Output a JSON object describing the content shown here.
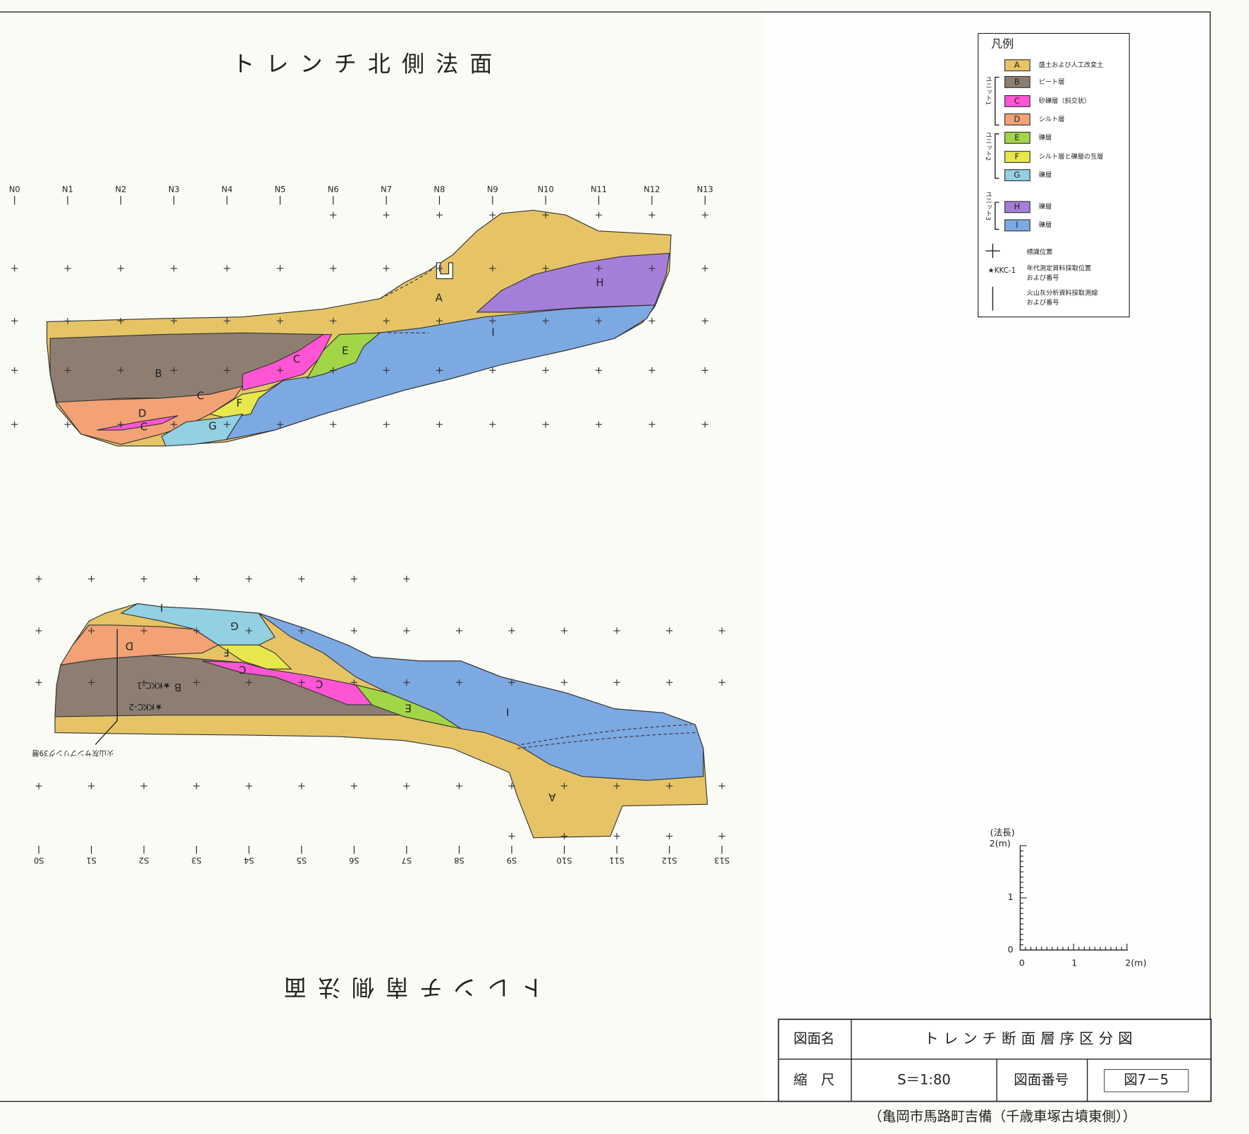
{
  "north_section": {
    "title": "トレンチ北側法面",
    "stations": [
      "N0",
      "N1",
      "N2",
      "N3",
      "N4",
      "N5",
      "N6",
      "N7",
      "N8",
      "N9",
      "N10",
      "N11",
      "N12",
      "N13"
    ],
    "layer_labels": [
      "A",
      "B",
      "C",
      "C",
      "C",
      "D",
      "E",
      "F",
      "G",
      "H",
      "I"
    ]
  },
  "south_section": {
    "title": "トレンチ南側法面",
    "stations": [
      "S0",
      "S1",
      "S2",
      "S3",
      "S4",
      "S5",
      "S6",
      "S7",
      "S8",
      "S9",
      "S10",
      "S11",
      "S12",
      "S13"
    ],
    "layer_labels": [
      "A",
      "B",
      "C",
      "C",
      "D",
      "E",
      "F",
      "G",
      "I",
      "I"
    ],
    "annotations": [
      "★KKC-1",
      "★KKC-2",
      "火山灰サンプリング39層"
    ]
  },
  "legend": {
    "title": "凡例",
    "items": [
      {
        "code": "A",
        "label": "盛土および人工改変土",
        "color": "#e6c466"
      },
      {
        "code": "B",
        "label": "ピート層",
        "color": "#8e7e72"
      },
      {
        "code": "C",
        "label": "砂礫層（斜交状）",
        "color": "#ff55d4"
      },
      {
        "code": "D",
        "label": "シルト層",
        "color": "#f2a274"
      },
      {
        "code": "E",
        "label": "礫層",
        "color": "#a2d647"
      },
      {
        "code": "F",
        "label": "シルト層と礫層の互層",
        "color": "#e8e84e"
      },
      {
        "code": "G",
        "label": "礫層",
        "color": "#92d0e2"
      },
      {
        "code": "H",
        "label": "礫層",
        "color": "#a47fd9"
      },
      {
        "code": "I",
        "label": "礫層",
        "color": "#7da9e2"
      }
    ],
    "units": [
      "ユニット1",
      "ユニット2",
      "ユニット3"
    ],
    "marker_label": "標識位置",
    "sample_symbol": "★KKC-1",
    "sample_label": [
      "年代測定資料採取位置",
      "および番号"
    ],
    "line_label": [
      "火山灰分析資料採取測線",
      "および番号"
    ]
  },
  "scale": {
    "axis_title": "(法長)",
    "vertical_ticks": [
      "2(m)",
      "1",
      "0"
    ],
    "horizontal_ticks": [
      "0",
      "1",
      "2(m)"
    ]
  },
  "title_block": {
    "name_header": "図面名",
    "name": "トレンチ断面層序区分図",
    "scale_header": "縮　尺",
    "scale": "S＝1:80",
    "number_header": "図面番号",
    "number": "図7－5"
  },
  "footer": "（亀岡市馬路町吉備（千歳車塚古墳東側））"
}
